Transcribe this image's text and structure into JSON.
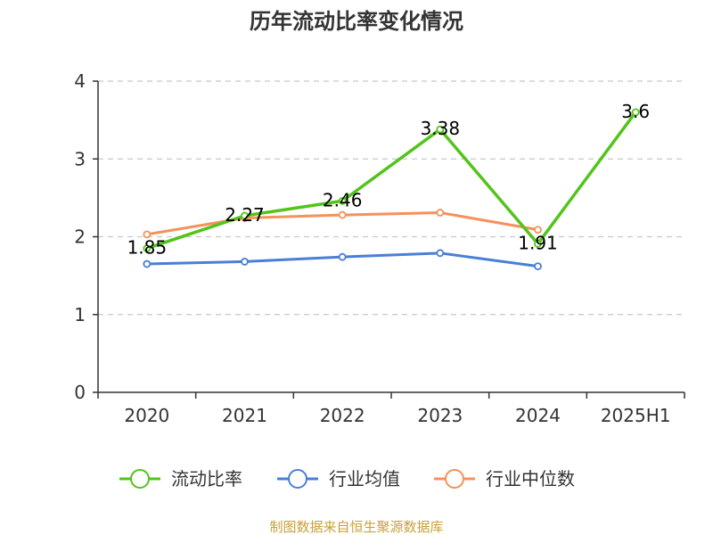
{
  "chart_data": {
    "type": "line",
    "title": "历年流动比率变化情况",
    "categories": [
      "2020",
      "2021",
      "2022",
      "2023",
      "2024",
      "2025H1"
    ],
    "ylim": [
      0,
      4
    ],
    "yticks": [
      "0",
      "1",
      "2",
      "3",
      "4"
    ],
    "grid": true,
    "legend_position": "bottom",
    "series": [
      {
        "name": "流动比率",
        "color": "#52c41a",
        "values": [
          1.85,
          2.27,
          2.46,
          3.38,
          1.91,
          3.6
        ],
        "labels": [
          "1.85",
          "2.27",
          "2.46",
          "3.38",
          "1.91",
          "3.6"
        ]
      },
      {
        "name": "行业均值",
        "color": "#4a7fd6",
        "values": [
          1.65,
          1.68,
          1.74,
          1.79,
          1.62,
          null
        ]
      },
      {
        "name": "行业中位数",
        "color": "#f5915a",
        "values": [
          2.03,
          2.24,
          2.28,
          2.31,
          2.09,
          null
        ]
      }
    ]
  },
  "source": "制图数据来自恒生聚源数据库"
}
